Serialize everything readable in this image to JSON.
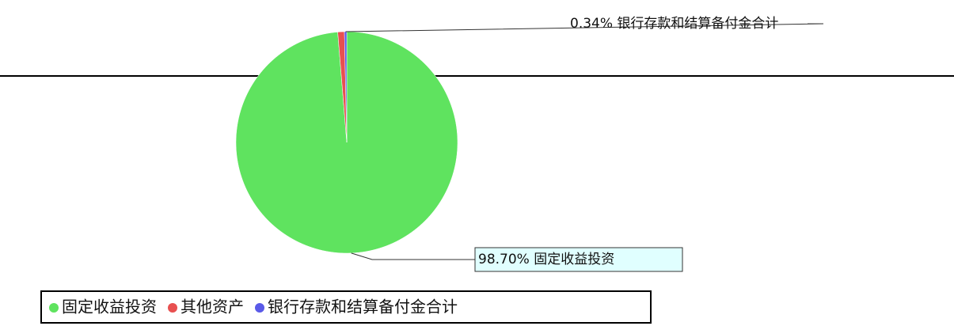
{
  "chart_data": {
    "type": "pie",
    "categories": [
      "固定收益投资",
      "其他资产",
      "银行存款和结算备付金合计"
    ],
    "values": [
      98.7,
      0.96,
      0.34
    ],
    "value_labels": [
      "98.70%",
      null,
      "0.34%"
    ],
    "colors": [
      "#5fe35f",
      "#e85050",
      "#5a5ae8"
    ],
    "legend": "bottom"
  }
}
